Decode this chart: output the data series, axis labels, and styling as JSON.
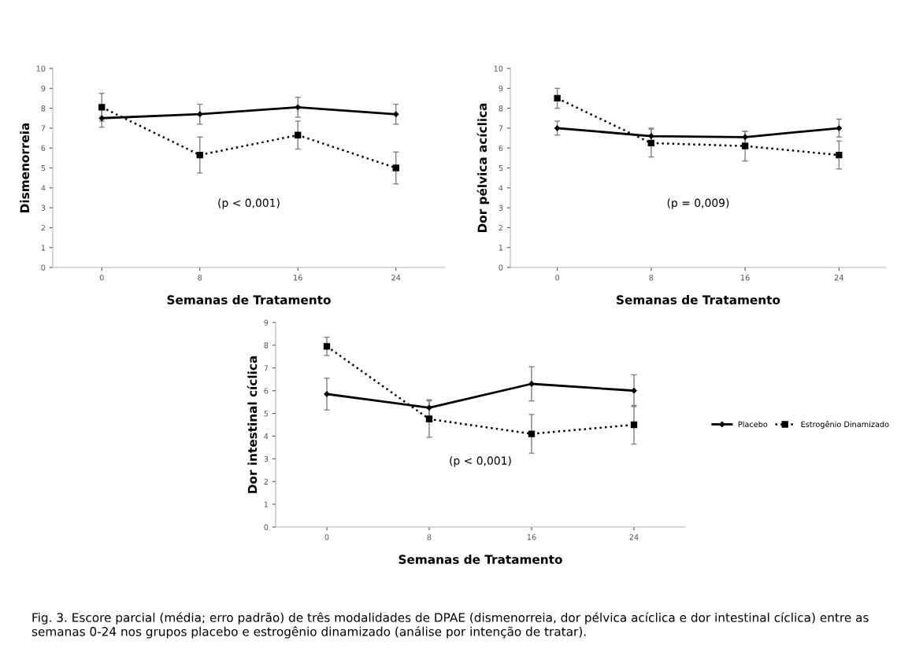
{
  "chart_data": [
    {
      "type": "line",
      "ylabel": "Dismenorreia",
      "xlabel": "Semanas de Tratamento",
      "categories": [
        "0",
        "8",
        "16",
        "24"
      ],
      "ylim": [
        0,
        10
      ],
      "yticks": [
        0,
        1,
        2,
        3,
        4,
        5,
        6,
        7,
        8,
        9,
        10
      ],
      "grid": false,
      "annotations": [
        "(p < 0,001)"
      ],
      "series": [
        {
          "color": "#000000",
          "values": [
            7.5,
            7.7,
            8.05,
            7.7
          ],
          "errors": [
            0.45,
            0.5,
            0.5,
            0.5
          ],
          "line_style": "solid",
          "marker": "diamond"
        },
        {
          "color": "#000000",
          "values": [
            8.05,
            5.65,
            6.65,
            5.0
          ],
          "errors": [
            0.7,
            0.9,
            0.7,
            0.8
          ],
          "line_style": "dotted",
          "marker": "square"
        }
      ]
    },
    {
      "type": "line",
      "ylabel": "Dor pélvica acíclica",
      "xlabel": "Semanas de Tratamento",
      "categories": [
        "0",
        "8",
        "16",
        "24"
      ],
      "ylim": [
        0,
        10
      ],
      "yticks": [
        0,
        1,
        2,
        3,
        4,
        5,
        6,
        7,
        8,
        9,
        10
      ],
      "grid": false,
      "annotations": [
        "(p = 0,009)"
      ],
      "series": [
        {
          "color": "#000000",
          "values": [
            7.0,
            6.6,
            6.55,
            7.0
          ],
          "errors": [
            0.35,
            0.4,
            0.3,
            0.45
          ],
          "line_style": "solid",
          "marker": "diamond"
        },
        {
          "color": "#000000",
          "values": [
            8.5,
            6.25,
            6.1,
            5.65
          ],
          "errors": [
            0.5,
            0.7,
            0.75,
            0.7
          ],
          "line_style": "dotted",
          "marker": "square"
        }
      ]
    },
    {
      "type": "line",
      "ylabel": "Dor intestinal cíclica",
      "xlabel": "Semanas de Tratamento",
      "categories": [
        "0",
        "8",
        "16",
        "24"
      ],
      "ylim": [
        0,
        9
      ],
      "yticks": [
        0,
        1,
        2,
        3,
        4,
        5,
        6,
        7,
        8,
        9
      ],
      "grid": false,
      "legend": "right",
      "annotations": [
        "(p < 0,001)",
        "Fig. 3. Escore parcial (média; erro padrão) de três modalidades de DPAE (dismenorreia, dor pélvica acíclica e dor intestinal cíclica) entre as semanas 0-24 nos grupos placebo e estrogênio dinamizado (análise por intenção de tratar)."
      ],
      "series": [
        {
          "name": "Placebo",
          "color": "#000000",
          "values": [
            5.85,
            5.25,
            6.3,
            6.0
          ],
          "errors": [
            0.7,
            0.35,
            0.75,
            0.7
          ],
          "line_style": "solid",
          "marker": "diamond"
        },
        {
          "name": "Estrogênio Dinamizado",
          "color": "#000000",
          "values": [
            7.95,
            4.75,
            4.1,
            4.5
          ],
          "errors": [
            0.4,
            0.8,
            0.85,
            0.85
          ],
          "line_style": "dotted",
          "marker": "square"
        }
      ]
    }
  ]
}
